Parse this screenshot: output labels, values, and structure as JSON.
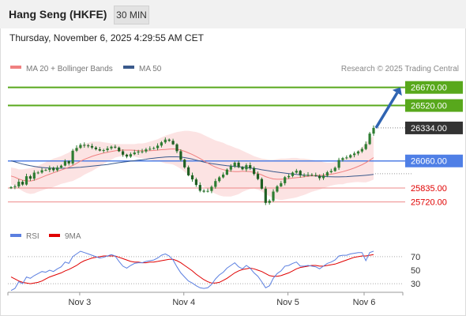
{
  "header": {
    "title": "Hang Seng (HKFE)",
    "timeframe": "30 MIN",
    "datetime": "Thursday, November 6, 2025 4:29:55 AM CET"
  },
  "legend": {
    "ma20": "MA 20 + Bollinger Bands",
    "ma50": "MA 50",
    "credit": "Research © 2025 Trading Central"
  },
  "colors": {
    "candle": "#2e7d32",
    "ma20": "#f08080",
    "ma50": "#3a5a8c",
    "bands": "#fbdada",
    "target": "#58a81c",
    "pivot": "#4f7fe6",
    "support": "#ee8a8a",
    "current_bg": "#333333",
    "arrow": "#2f64b2",
    "rsi": "#5b7fe0",
    "rsi_ma": "#e00000"
  },
  "chart_data": [
    {
      "type": "candlestick",
      "title": "Hang Seng (HKFE)",
      "timeframe": "30 MIN",
      "x_tick_labels": [
        "Nov 3",
        "Nov 4",
        "Nov 5",
        "Nov 6"
      ],
      "ylim": [
        25560,
        26740
      ],
      "levels": [
        {
          "kind": "target",
          "value": 26670.0,
          "label": "26670.00"
        },
        {
          "kind": "target",
          "value": 26520.0,
          "label": "26520.00"
        },
        {
          "kind": "current",
          "value": 26334.0,
          "label": "26334.00"
        },
        {
          "kind": "pivot",
          "value": 26060.0,
          "label": "26060.00"
        },
        {
          "kind": "support",
          "value": 25835.0,
          "label": "25835.00"
        },
        {
          "kind": "support",
          "value": 25720.0,
          "label": "25720.00"
        }
      ],
      "closes": [
        25843,
        25849,
        25887,
        25864,
        25933,
        25913,
        25963,
        25964,
        25983,
        25985,
        26003,
        25983,
        26005,
        26021,
        26058,
        26039,
        26145,
        26168,
        26193,
        26189,
        26184,
        26171,
        26157,
        26146,
        26150,
        26164,
        26178,
        26171,
        26140,
        26112,
        26096,
        26116,
        26130,
        26138,
        26139,
        26156,
        26161,
        26167,
        26187,
        26214,
        26237,
        26227,
        26198,
        26141,
        26070,
        26007,
        25941,
        25907,
        25861,
        25813,
        25805,
        25811,
        25845,
        25893,
        25924,
        25947,
        25988,
        26016,
        26046,
        26010,
        25991,
        26025,
        26001,
        25952,
        25910,
        25830,
        25712,
        25730,
        25806,
        25849,
        25875,
        25925,
        25935,
        25963,
        25978,
        25941,
        25943,
        25945,
        25942,
        25936,
        25917,
        25938,
        25966,
        25976,
        26003,
        26068,
        26083,
        26089,
        26109,
        26122,
        26139,
        26159,
        26200,
        26287,
        26334
      ],
      "ma20": [
        25935,
        25925,
        25910,
        25900,
        25895,
        25893,
        25900,
        25912,
        25925,
        25938,
        25950,
        25962,
        25973,
        25985,
        25996,
        26008,
        26022,
        26040,
        26058,
        26073,
        26086,
        26098,
        26108,
        26117,
        26125,
        26132,
        26138,
        26144,
        26148,
        26150,
        26150,
        26150,
        26148,
        26146,
        26144,
        26144,
        26145,
        26147,
        26150,
        26153,
        26155,
        26158,
        26160,
        26157,
        26150,
        26140,
        26127,
        26113,
        26097,
        26080,
        26061,
        26042,
        26024,
        26009,
        25997,
        25988,
        25980,
        25975,
        25972,
        25972,
        25974,
        25973,
        25971,
        25965,
        25956,
        25944,
        25930,
        25919,
        25911,
        25908,
        25908,
        25910,
        25914,
        25918,
        25921,
        25924,
        25929,
        25933,
        25937,
        25939,
        25941,
        25942,
        25945,
        25950,
        25956,
        25963,
        25971,
        25980,
        25990,
        26002,
        26015,
        26029,
        26046,
        26066,
        26088
      ],
      "ma50": [
        26060,
        26052,
        26043,
        26034,
        26027,
        26020,
        26015,
        26010,
        26006,
        26003,
        26001,
        26000,
        25999,
        25999,
        26000,
        26001,
        26003,
        26006,
        26008,
        26011,
        26014,
        26017,
        26020,
        26024,
        26027,
        26031,
        26036,
        26041,
        26046,
        26050,
        26054,
        26058,
        26062,
        26066,
        26070,
        26074,
        26079,
        26083,
        26087,
        26090,
        26092,
        26094,
        26094,
        26094,
        26092,
        26088,
        26082,
        26075,
        26067,
        26059,
        26051,
        26044,
        26038,
        26033,
        26029,
        26025,
        26021,
        26018,
        26015,
        26012,
        26009,
        26005,
        26001,
        25997,
        25993,
        25987,
        25982,
        25977,
        25972,
        25967,
        25963,
        25959,
        25955,
        25952,
        25949,
        25945,
        25942,
        25940,
        25937,
        25935,
        25933,
        25931,
        25930,
        25929,
        25928,
        25928,
        25929,
        25930,
        25932,
        25934,
        25936,
        25938,
        25941,
        25944,
        25948
      ],
      "bb_upper": [
        26005,
        26000,
        25990,
        25990,
        25995,
        26000,
        26010,
        26020,
        26035,
        26050,
        26065,
        26080,
        26090,
        26100,
        26115,
        26130,
        26150,
        26170,
        26190,
        26200,
        26210,
        26220,
        26220,
        26220,
        26215,
        26210,
        26205,
        26200,
        26200,
        26200,
        26200,
        26200,
        26200,
        26205,
        26205,
        26210,
        26220,
        26230,
        26240,
        26255,
        26270,
        26280,
        26290,
        26300,
        26305,
        26310,
        26310,
        26305,
        26300,
        26290,
        26275,
        26260,
        26245,
        26230,
        26220,
        26210,
        26195,
        26185,
        26170,
        26160,
        26145,
        26130,
        26115,
        26100,
        26090,
        26080,
        26075,
        26070,
        26070,
        26075,
        26080,
        26080,
        26082,
        26085,
        26085,
        26080,
        26080,
        26075,
        26070,
        26065,
        26060,
        26050,
        26045,
        26045,
        26050,
        26060,
        26075,
        26085,
        26100,
        26120,
        26145,
        26175,
        26210,
        26240,
        26270
      ],
      "bb_lower": [
        25865,
        25850,
        25830,
        25810,
        25795,
        25786,
        25790,
        25804,
        25815,
        25826,
        25835,
        25844,
        25856,
        25870,
        25877,
        25886,
        25894,
        25910,
        25926,
        25946,
        25962,
        25976,
        25996,
        26014,
        26035,
        26054,
        26071,
        26088,
        26096,
        26100,
        26100,
        26100,
        26096,
        26087,
        26083,
        26078,
        26070,
        26064,
        26060,
        26051,
        26040,
        26036,
        26030,
        26014,
        25995,
        25970,
        25944,
        25921,
        25894,
        25870,
        25847,
        25824,
        25803,
        25788,
        25774,
        25766,
        25765,
        25765,
        25774,
        25784,
        25803,
        25816,
        25827,
        25830,
        25822,
        25808,
        25785,
        25768,
        25752,
        25741,
        25736,
        25740,
        25746,
        25751,
        25757,
        25768,
        25778,
        25791,
        25804,
        25813,
        25822,
        25834,
        25845,
        25855,
        25862,
        25866,
        25867,
        25875,
        25880,
        25884,
        25885,
        25883,
        25882,
        25892,
        25906
      ]
    },
    {
      "type": "line",
      "title": "RSI",
      "series": [
        {
          "name": "RSI",
          "values": [
            20,
            23,
            33,
            30,
            40,
            38,
            42,
            45,
            48,
            47,
            50,
            48,
            52,
            55,
            62,
            60,
            70,
            74,
            78,
            76,
            74,
            72,
            70,
            68,
            69,
            71,
            73,
            71,
            63,
            56,
            53,
            57,
            60,
            61,
            61,
            63,
            64,
            65,
            68,
            72,
            74,
            71,
            65,
            55,
            46,
            40,
            34,
            31,
            27,
            24,
            23,
            24,
            29,
            37,
            43,
            47,
            53,
            57,
            61,
            55,
            52,
            57,
            53,
            46,
            41,
            33,
            24,
            27,
            38,
            45,
            49,
            56,
            57,
            60,
            62,
            56,
            56,
            57,
            56,
            55,
            52,
            56,
            60,
            62,
            65,
            71,
            72,
            72,
            74,
            75,
            76,
            76,
            64,
            76,
            78
          ]
        },
        {
          "name": "9MA",
          "values": [
            40,
            37,
            34,
            32,
            31,
            30,
            31,
            32,
            34,
            37,
            40,
            42,
            44,
            46,
            49,
            51,
            54,
            57,
            61,
            64,
            66,
            68,
            69,
            70,
            71,
            71,
            71,
            71,
            69,
            67,
            65,
            63,
            62,
            62,
            61,
            61,
            62,
            62,
            63,
            64,
            65,
            66,
            66,
            64,
            61,
            57,
            53,
            49,
            44,
            40,
            36,
            33,
            31,
            31,
            32,
            35,
            38,
            42,
            46,
            49,
            51,
            52,
            53,
            52,
            50,
            48,
            45,
            42,
            41,
            41,
            42,
            44,
            46,
            49,
            52,
            54,
            55,
            56,
            57,
            57,
            56,
            56,
            57,
            58,
            59,
            61,
            63,
            65,
            67,
            69,
            70,
            71,
            71,
            72,
            73
          ]
        }
      ],
      "ylim": [
        15,
        85
      ],
      "y_ticks": [
        30,
        50,
        70
      ],
      "guide_lines": [
        30,
        70
      ]
    }
  ]
}
